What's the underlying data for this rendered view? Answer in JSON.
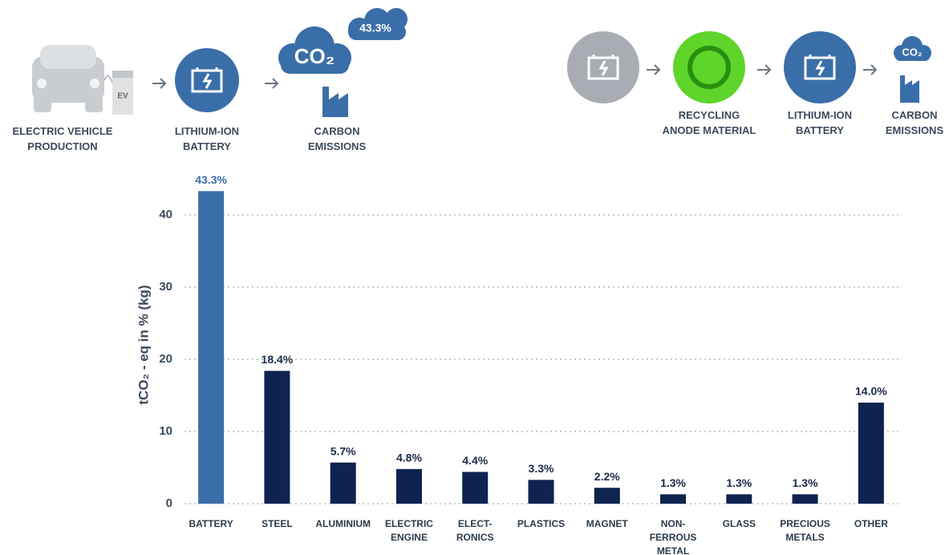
{
  "chart_data": {
    "type": "bar",
    "y_label": "tCO₂ - eq in % (kg)",
    "categories": [
      "BATTERY",
      "STEEL",
      "ALUMINIUM",
      "ELECTRIC ENGINE",
      "ELECT-RONICS",
      "PLASTICS",
      "MAGNET",
      "NON-FERROUS METAL",
      "GLASS",
      "PRECIOUS METALS",
      "OTHER"
    ],
    "values": [
      43.3,
      18.4,
      5.7,
      4.8,
      4.4,
      3.3,
      2.2,
      1.3,
      1.3,
      1.3,
      14.0
    ],
    "value_labels": [
      "43.3%",
      "18.4%",
      "5.7%",
      "4.8%",
      "4.4%",
      "3.3%",
      "2.2%",
      "1.3%",
      "1.3%",
      "1.3%",
      "14.0%"
    ],
    "colors": [
      "#3a6ea8",
      "#0f2350",
      "#0f2350",
      "#0f2350",
      "#0f2350",
      "#0f2350",
      "#0f2350",
      "#0f2350",
      "#0f2350",
      "#0f2350",
      "#0f2350"
    ],
    "ylim": [
      0,
      45
    ],
    "yticks": [
      0,
      10,
      20,
      30,
      40
    ],
    "grid": true
  },
  "infographic": {
    "ev_tag": "EV",
    "cloud_text": "CO₂",
    "share_bubble": "43.3%",
    "small_cloud_text": "CO₂",
    "left_steps": [
      [
        "ELECTRIC VEHICLE",
        "PRODUCTION"
      ],
      [
        "LITHIUM-ION",
        "BATTERY"
      ],
      [
        "CARBON",
        "EMISSIONS"
      ]
    ],
    "right_steps": [
      [
        "RECYCLING",
        "ANODE MATERIAL"
      ],
      [
        "LITHIUM-ION",
        "BATTERY"
      ],
      [
        "CARBON",
        "EMISSIONS"
      ]
    ]
  }
}
